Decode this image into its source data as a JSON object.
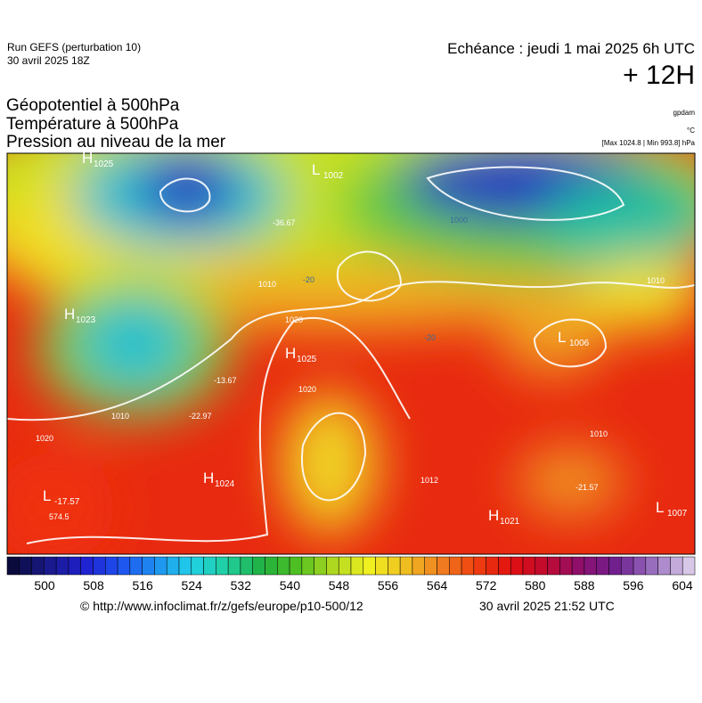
{
  "header": {
    "run": "Run GEFS (perturbation 10)",
    "run_date": "30 avril 2025 18Z",
    "echeance": "Echéance : jeudi 1 mai 2025 6h UTC",
    "lead": "+ 12H",
    "fields": [
      "Géopotentiel à 500hPa",
      "Température à 500hPa",
      "Pression au niveau de la mer"
    ],
    "unit_geo": "gpdam",
    "unit_temp": "°C",
    "unit_pressure": "[Max 1024.8 | Min 993.8] hPa"
  },
  "map": {
    "centers": [
      {
        "letter": "H",
        "value": "1025"
      },
      {
        "letter": "L",
        "value": "1002"
      },
      {
        "letter": "H",
        "value": "1023"
      },
      {
        "letter": "H",
        "value": "1025"
      },
      {
        "letter": "H",
        "value": "1024"
      },
      {
        "letter": "L",
        "value": "1006"
      },
      {
        "letter": "H",
        "value": "1021"
      },
      {
        "letter": "L",
        "value": "1007"
      },
      {
        "letter": "L",
        "value": "-17.57"
      }
    ],
    "contour_labels": [
      "1010",
      "1020",
      "1020",
      "1020",
      "1010",
      "1012",
      "1010",
      "1010",
      "-36.67",
      "-13.67",
      "-22.97",
      "574.5",
      "-21.57",
      "-20",
      "-20",
      "1000"
    ]
  },
  "colorbar": {
    "labels": [
      "500",
      "508",
      "516",
      "524",
      "532",
      "540",
      "548",
      "556",
      "564",
      "572",
      "580",
      "588",
      "596",
      "604"
    ],
    "colors": [
      "#0a0a3c",
      "#1a1a8c",
      "#2020d0",
      "#1e50f0",
      "#1e90f0",
      "#20d0e8",
      "#20d0a0",
      "#20b040",
      "#50c020",
      "#b0d820",
      "#f0f020",
      "#f0c020",
      "#f08020",
      "#f04010",
      "#e01010",
      "#c00a30",
      "#8a1070",
      "#702090",
      "#9a70c0",
      "#d8c8e8"
    ]
  },
  "footer": {
    "url": "© http://www.infoclimat.fr/z/gefs/europe/p10-500/12",
    "generated": "30 avril 2025 21:52 UTC"
  }
}
